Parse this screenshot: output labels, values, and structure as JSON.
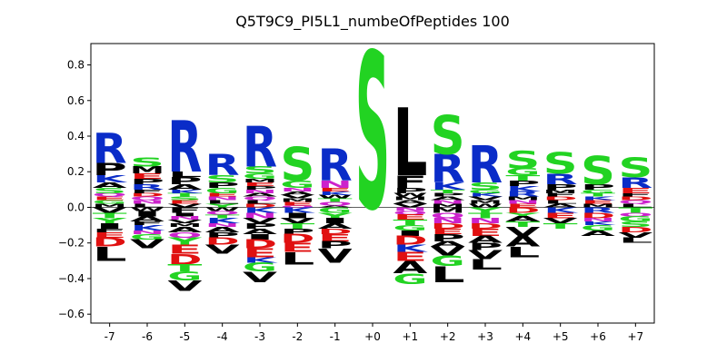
{
  "chart_data": {
    "type": "sequence_logo",
    "title": "Q5T9C9_PI5L1_numbeOfPeptides 100",
    "xlabel": "",
    "ylabel": "",
    "ylim": [
      -0.65,
      0.92
    ],
    "yticks": [
      -0.6,
      -0.4,
      -0.2,
      0.0,
      0.2,
      0.4,
      0.6,
      0.8
    ],
    "ytick_labels": [
      "−0.6",
      "−0.4",
      "−0.2",
      "0.0",
      "0.2",
      "0.4",
      "0.6",
      "0.8"
    ],
    "positions": [
      "-7",
      "-6",
      "-5",
      "-4",
      "-3",
      "-2",
      "-1",
      "+0",
      "+1",
      "+2",
      "+3",
      "+4",
      "+5",
      "+6",
      "+7"
    ],
    "colors": {
      "R": "#0a2cc8",
      "K": "#0a2cc8",
      "H": "#0a2cc8",
      "S": "#22d322",
      "T": "#22d322",
      "G": "#22d322",
      "Y": "#22d322",
      "C": "#22d322",
      "D": "#e01010",
      "E": "#e01010",
      "N": "#cc22cc",
      "Q": "#cc22cc",
      "A": "#000000",
      "V": "#000000",
      "L": "#000000",
      "I": "#000000",
      "P": "#000000",
      "F": "#000000",
      "M": "#000000",
      "W": "#000000"
    },
    "columns": [
      {
        "pos": "-7",
        "pos_stack": [
          [
            "R",
            0.17
          ],
          [
            "P",
            0.07
          ],
          [
            "K",
            0.04
          ],
          [
            "A",
            0.03
          ],
          [
            "S",
            0.03
          ],
          [
            "Q",
            0.02
          ],
          [
            "E",
            0.02
          ],
          [
            "G",
            0.02
          ],
          [
            "M",
            0.02
          ]
        ],
        "neg_stack": [
          [
            "V",
            0.03
          ],
          [
            "T",
            0.03
          ],
          [
            "Y",
            0.03
          ],
          [
            "I",
            0.03
          ],
          [
            "F",
            0.02
          ],
          [
            "E",
            0.03
          ],
          [
            "D",
            0.05
          ],
          [
            "L",
            0.08
          ]
        ]
      },
      {
        "pos": "-6",
        "pos_stack": [
          [
            "S",
            0.05
          ],
          [
            "M",
            0.04
          ],
          [
            "E",
            0.03
          ],
          [
            "P",
            0.03
          ],
          [
            "R",
            0.03
          ],
          [
            "F",
            0.02
          ],
          [
            "D",
            0.02
          ],
          [
            "Q",
            0.02
          ],
          [
            "N",
            0.02
          ],
          [
            "L",
            0.02
          ]
        ],
        "neg_stack": [
          [
            "W",
            0.02
          ],
          [
            "I",
            0.03
          ],
          [
            "A",
            0.03
          ],
          [
            "F",
            0.02
          ],
          [
            "K",
            0.03
          ],
          [
            "N",
            0.02
          ],
          [
            "G",
            0.03
          ],
          [
            "V",
            0.05
          ]
        ]
      },
      {
        "pos": "-5",
        "pos_stack": [
          [
            "R",
            0.29
          ],
          [
            "L",
            0.03
          ],
          [
            "P",
            0.04
          ],
          [
            "A",
            0.03
          ],
          [
            "K",
            0.02
          ],
          [
            "T",
            0.02
          ],
          [
            "S",
            0.02
          ],
          [
            "E",
            0.02
          ],
          [
            "V",
            0.02
          ]
        ],
        "neg_stack": [
          [
            "F",
            0.03
          ],
          [
            "I",
            0.02
          ],
          [
            "N",
            0.02
          ],
          [
            "V",
            0.02
          ],
          [
            "M",
            0.02
          ],
          [
            "A",
            0.03
          ],
          [
            "Q",
            0.03
          ],
          [
            "Y",
            0.04
          ],
          [
            "E",
            0.05
          ],
          [
            "D",
            0.06
          ],
          [
            "T",
            0.04
          ],
          [
            "G",
            0.05
          ],
          [
            "V",
            0.06
          ]
        ]
      },
      {
        "pos": "-4",
        "pos_stack": [
          [
            "R",
            0.12
          ],
          [
            "S",
            0.04
          ],
          [
            "P",
            0.03
          ],
          [
            "G",
            0.03
          ],
          [
            "E",
            0.02
          ],
          [
            "N",
            0.02
          ],
          [
            "L",
            0.02
          ],
          [
            "Y",
            0.02
          ]
        ],
        "neg_stack": [
          [
            "W",
            0.02
          ],
          [
            "Q",
            0.02
          ],
          [
            "T",
            0.02
          ],
          [
            "K",
            0.03
          ],
          [
            "N",
            0.02
          ],
          [
            "A",
            0.03
          ],
          [
            "P",
            0.03
          ],
          [
            "D",
            0.04
          ],
          [
            "V",
            0.05
          ]
        ]
      },
      {
        "pos": "-3",
        "pos_stack": [
          [
            "R",
            0.23
          ],
          [
            "S",
            0.04
          ],
          [
            "G",
            0.03
          ],
          [
            "M",
            0.02
          ],
          [
            "E",
            0.02
          ],
          [
            "P",
            0.02
          ],
          [
            "N",
            0.02
          ],
          [
            "A",
            0.02
          ],
          [
            "Q",
            0.02
          ],
          [
            "L",
            0.02
          ],
          [
            "D",
            0.02
          ]
        ],
        "neg_stack": [
          [
            "K",
            0.03
          ],
          [
            "N",
            0.03
          ],
          [
            "V",
            0.03
          ],
          [
            "P",
            0.03
          ],
          [
            "A",
            0.03
          ],
          [
            "I",
            0.03
          ],
          [
            "D",
            0.05
          ],
          [
            "E",
            0.05
          ],
          [
            "K",
            0.03
          ],
          [
            "G",
            0.05
          ],
          [
            "V",
            0.06
          ]
        ]
      },
      {
        "pos": "-2",
        "pos_stack": [
          [
            "S",
            0.19
          ],
          [
            "G",
            0.04
          ],
          [
            "N",
            0.02
          ],
          [
            "A",
            0.02
          ],
          [
            "V",
            0.02
          ],
          [
            "M",
            0.02
          ],
          [
            "E",
            0.02
          ],
          [
            "Q",
            0.01
          ]
        ],
        "neg_stack": [
          [
            "K",
            0.03
          ],
          [
            "I",
            0.03
          ],
          [
            "V",
            0.03
          ],
          [
            "T",
            0.03
          ],
          [
            "P",
            0.03
          ],
          [
            "D",
            0.05
          ],
          [
            "E",
            0.05
          ],
          [
            "L",
            0.07
          ]
        ]
      },
      {
        "pos": "-1",
        "pos_stack": [
          [
            "R",
            0.18
          ],
          [
            "N",
            0.04
          ],
          [
            "E",
            0.02
          ],
          [
            "K",
            0.02
          ],
          [
            "W",
            0.02
          ],
          [
            "T",
            0.02
          ],
          [
            "Q",
            0.02
          ],
          [
            "A",
            0.01
          ]
        ],
        "neg_stack": [
          [
            "G",
            0.03
          ],
          [
            "Y",
            0.03
          ],
          [
            "I",
            0.03
          ],
          [
            "A",
            0.03
          ],
          [
            "D",
            0.03
          ],
          [
            "E",
            0.04
          ],
          [
            "P",
            0.04
          ],
          [
            "V",
            0.08
          ]
        ]
      },
      {
        "pos": "+0",
        "pos_stack": [
          [
            "S",
            0.88
          ]
        ],
        "neg_stack": []
      },
      {
        "pos": "+1",
        "pos_stack": [
          [
            "L",
            0.38
          ],
          [
            "F",
            0.07
          ],
          [
            "P",
            0.03
          ],
          [
            "W",
            0.02
          ],
          [
            "M",
            0.02
          ],
          [
            "A",
            0.02
          ],
          [
            "V",
            0.02
          ]
        ],
        "neg_stack": [
          [
            "N",
            0.02
          ],
          [
            "Q",
            0.02
          ],
          [
            "E",
            0.03
          ],
          [
            "T",
            0.03
          ],
          [
            "G",
            0.03
          ],
          [
            "I",
            0.03
          ],
          [
            "D",
            0.05
          ],
          [
            "K",
            0.04
          ],
          [
            "E",
            0.05
          ],
          [
            "A",
            0.07
          ],
          [
            "G",
            0.06
          ]
        ]
      },
      {
        "pos": "+2",
        "pos_stack": [
          [
            "S",
            0.22
          ],
          [
            "R",
            0.16
          ],
          [
            "K",
            0.04
          ],
          [
            "T",
            0.02
          ],
          [
            "P",
            0.02
          ],
          [
            "A",
            0.02
          ],
          [
            "N",
            0.02
          ],
          [
            "M",
            0.02
          ]
        ],
        "neg_stack": [
          [
            "M",
            0.03
          ],
          [
            "Q",
            0.03
          ],
          [
            "N",
            0.03
          ],
          [
            "D",
            0.03
          ],
          [
            "E",
            0.03
          ],
          [
            "P",
            0.04
          ],
          [
            "A",
            0.03
          ],
          [
            "V",
            0.05
          ],
          [
            "G",
            0.06
          ],
          [
            "L",
            0.09
          ]
        ]
      },
      {
        "pos": "+3",
        "pos_stack": [
          [
            "R",
            0.21
          ],
          [
            "S",
            0.04
          ],
          [
            "G",
            0.02
          ],
          [
            "K",
            0.02
          ],
          [
            "V",
            0.02
          ],
          [
            "M",
            0.02
          ],
          [
            "W",
            0.02
          ]
        ],
        "neg_stack": [
          [
            "Y",
            0.03
          ],
          [
            "T",
            0.03
          ],
          [
            "N",
            0.03
          ],
          [
            "D",
            0.03
          ],
          [
            "E",
            0.04
          ],
          [
            "A",
            0.04
          ],
          [
            "P",
            0.04
          ],
          [
            "V",
            0.05
          ],
          [
            "L",
            0.06
          ]
        ]
      },
      {
        "pos": "+4",
        "pos_stack": [
          [
            "S",
            0.1
          ],
          [
            "G",
            0.04
          ],
          [
            "T",
            0.03
          ],
          [
            "P",
            0.03
          ],
          [
            "K",
            0.03
          ],
          [
            "R",
            0.03
          ],
          [
            "M",
            0.02
          ],
          [
            "N",
            0.02
          ],
          [
            "E",
            0.02
          ]
        ],
        "neg_stack": [
          [
            "D",
            0.03
          ],
          [
            "Y",
            0.02
          ],
          [
            "A",
            0.03
          ],
          [
            "T",
            0.03
          ],
          [
            "V",
            0.05
          ],
          [
            "A",
            0.06
          ],
          [
            "L",
            0.06
          ]
        ]
      },
      {
        "pos": "+5",
        "pos_stack": [
          [
            "S",
            0.12
          ],
          [
            "R",
            0.06
          ],
          [
            "P",
            0.03
          ],
          [
            "M",
            0.02
          ],
          [
            "F",
            0.02
          ],
          [
            "D",
            0.02
          ],
          [
            "L",
            0.02
          ],
          [
            "A",
            0.02
          ]
        ],
        "neg_stack": [
          [
            "K",
            0.03
          ],
          [
            "E",
            0.03
          ],
          [
            "V",
            0.03
          ],
          [
            "T",
            0.03
          ]
        ]
      },
      {
        "pos": "+6",
        "pos_stack": [
          [
            "S",
            0.16
          ],
          [
            "P",
            0.03
          ],
          [
            "G",
            0.02
          ],
          [
            "T",
            0.02
          ],
          [
            "K",
            0.02
          ],
          [
            "E",
            0.02
          ],
          [
            "M",
            0.02
          ]
        ],
        "neg_stack": [
          [
            "R",
            0.03
          ],
          [
            "D",
            0.03
          ],
          [
            "N",
            0.02
          ],
          [
            "K",
            0.02
          ],
          [
            "G",
            0.03
          ],
          [
            "A",
            0.03
          ]
        ]
      },
      {
        "pos": "+7",
        "pos_stack": [
          [
            "S",
            0.11
          ],
          [
            "R",
            0.06
          ],
          [
            "E",
            0.03
          ],
          [
            "F",
            0.02
          ],
          [
            "D",
            0.02
          ],
          [
            "Q",
            0.02
          ],
          [
            "L",
            0.02
          ]
        ],
        "neg_stack": [
          [
            "T",
            0.03
          ],
          [
            "Q",
            0.02
          ],
          [
            "G",
            0.03
          ],
          [
            "S",
            0.03
          ],
          [
            "D",
            0.03
          ],
          [
            "V",
            0.03
          ],
          [
            "L",
            0.03
          ]
        ]
      }
    ]
  }
}
